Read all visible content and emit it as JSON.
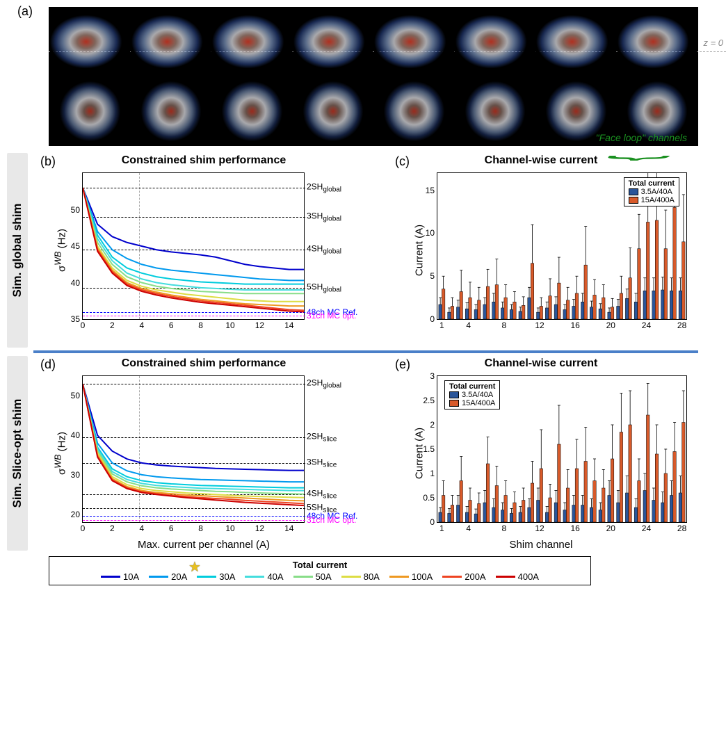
{
  "panel_a_label": "(a)",
  "z_label": "z = 0",
  "side_labels": {
    "global": "Sim. global shim",
    "slice": "Sim. Slice-opt shim"
  },
  "panels": {
    "b": {
      "label": "(b)",
      "title": "Constrained shim performance"
    },
    "c": {
      "label": "(c)",
      "title": "Channel-wise current"
    },
    "d": {
      "label": "(d)",
      "title": "Constrained shim performance"
    },
    "e": {
      "label": "(e)",
      "title": "Channel-wise current"
    }
  },
  "axis": {
    "y_sigma": "σ^{WB} (Hz)",
    "y_current": "Current (A)",
    "x_max_current": "Max. current per channel (A)",
    "x_shim": "Shim channel"
  },
  "chart_b": {
    "xlim": [
      0,
      15
    ],
    "ylim": [
      35,
      55
    ],
    "xticks": [
      0,
      2,
      4,
      6,
      8,
      10,
      12,
      14
    ],
    "yticks": [
      35,
      40,
      45,
      50
    ],
    "vline": 3.8,
    "refs": [
      {
        "y": 53,
        "label": "2SH_global",
        "color": "#000"
      },
      {
        "y": 49,
        "label": "3SH_global",
        "color": "#000"
      },
      {
        "y": 44.5,
        "label": "4SH_global",
        "color": "#000"
      },
      {
        "y": 39.3,
        "label": "5SH_global",
        "color": "#000"
      },
      {
        "y": 36,
        "label": "48ch MC Ref.",
        "color": "#0000ff"
      },
      {
        "y": 35.5,
        "label": "31ch MC opt.",
        "color": "#ff00ff"
      }
    ],
    "series": [
      {
        "color": "#0000cc",
        "y": [
          53,
          48,
          46.3,
          45.5,
          45,
          44.5,
          44.2,
          44,
          43.8,
          43.5,
          43,
          42.5,
          42.2,
          42,
          41.8,
          41.8
        ]
      },
      {
        "color": "#0099ee",
        "y": [
          53,
          47,
          44.5,
          43.3,
          42.5,
          42,
          41.7,
          41.5,
          41.3,
          41.1,
          40.9,
          40.7,
          40.5,
          40.4,
          40.3,
          40.3
        ]
      },
      {
        "color": "#00ccdd",
        "y": [
          53,
          46.5,
          43.5,
          42,
          41.3,
          40.8,
          40.5,
          40.3,
          40.1,
          40,
          39.9,
          39.8,
          39.8,
          39.8,
          39.8,
          39.8
        ]
      },
      {
        "color": "#44dddd",
        "y": [
          53,
          46,
          43,
          41.3,
          40.5,
          40,
          39.7,
          39.5,
          39.3,
          39.2,
          39.1,
          39,
          39,
          39,
          39,
          39
        ]
      },
      {
        "color": "#88dd88",
        "y": [
          53,
          45.5,
          42.5,
          40.8,
          40,
          39.5,
          39.2,
          39,
          38.8,
          38.7,
          38.6,
          38.5,
          38.5,
          38.5,
          38.5,
          38.5
        ]
      },
      {
        "color": "#dddd44",
        "y": [
          53,
          45,
          42,
          40.3,
          39.5,
          39,
          38.7,
          38.4,
          38.2,
          38,
          37.8,
          37.6,
          37.5,
          37.4,
          37.4,
          37.4
        ]
      },
      {
        "color": "#ee9922",
        "y": [
          53,
          44.7,
          41.7,
          40,
          39.2,
          38.7,
          38.3,
          38,
          37.7,
          37.5,
          37.3,
          37.1,
          37,
          36.9,
          36.8,
          36.8
        ]
      },
      {
        "color": "#ee4422",
        "y": [
          53,
          44.5,
          41.5,
          39.8,
          39,
          38.5,
          38.1,
          37.8,
          37.5,
          37.3,
          37.1,
          36.9,
          36.7,
          36.5,
          36.3,
          36.2
        ]
      },
      {
        "color": "#cc0000",
        "y": [
          53,
          44.3,
          41.3,
          39.6,
          38.8,
          38.3,
          37.9,
          37.6,
          37.3,
          37.1,
          36.9,
          36.7,
          36.5,
          36.3,
          36.1,
          36
        ]
      }
    ]
  },
  "chart_d": {
    "xlim": [
      0,
      15
    ],
    "ylim": [
      18,
      55
    ],
    "xticks": [
      0,
      2,
      4,
      6,
      8,
      10,
      12,
      14
    ],
    "yticks": [
      20,
      30,
      40,
      50
    ],
    "vline": 3.8,
    "refs": [
      {
        "y": 53,
        "label": "2SH_global",
        "color": "#000"
      },
      {
        "y": 39.5,
        "label": "2SH_slice",
        "color": "#000"
      },
      {
        "y": 33,
        "label": "3SH_slice",
        "color": "#000"
      },
      {
        "y": 25,
        "label": "4SH_slice",
        "color": "#000"
      },
      {
        "y": 21.5,
        "label": "5SH_slice",
        "color": "#000"
      },
      {
        "y": 19.5,
        "label": "48ch MC Ref.",
        "color": "#0000ff"
      },
      {
        "y": 18.5,
        "label": "31ch MC opt.",
        "color": "#ff00ff"
      }
    ],
    "series": [
      {
        "color": "#0000cc",
        "y": [
          53,
          40,
          36,
          34,
          33,
          32.5,
          32.2,
          32,
          31.8,
          31.6,
          31.5,
          31.4,
          31.3,
          31.2,
          31.1,
          31.1
        ]
      },
      {
        "color": "#0099ee",
        "y": [
          53,
          38,
          33,
          31,
          30,
          29.5,
          29.2,
          29,
          28.8,
          28.7,
          28.6,
          28.5,
          28.4,
          28.3,
          28.2,
          28.2
        ]
      },
      {
        "color": "#00ccdd",
        "y": [
          53,
          37,
          31.5,
          29.5,
          28.5,
          28,
          27.7,
          27.5,
          27.3,
          27.2,
          27.1,
          27,
          26.9,
          26.8,
          26.7,
          26.7
        ]
      },
      {
        "color": "#44dddd",
        "y": [
          53,
          36.5,
          30.8,
          28.8,
          27.8,
          27.3,
          27,
          26.8,
          26.6,
          26.5,
          26.4,
          26.3,
          26.2,
          26.1,
          26,
          26
        ]
      },
      {
        "color": "#88dd88",
        "y": [
          53,
          36,
          30.2,
          28.2,
          27.2,
          26.7,
          26.4,
          26.2,
          26,
          25.8,
          25.7,
          25.5,
          25.4,
          25.3,
          25.2,
          25.1
        ]
      },
      {
        "color": "#dddd44",
        "y": [
          53,
          35.5,
          29.5,
          27.5,
          26.5,
          26,
          25.7,
          25.4,
          25.2,
          25,
          24.8,
          24.6,
          24.5,
          24.4,
          24.3,
          24.2
        ]
      },
      {
        "color": "#ee9922",
        "y": [
          53,
          35,
          29,
          27,
          26,
          25.5,
          25.2,
          24.9,
          24.7,
          24.5,
          24.3,
          24.1,
          23.9,
          23.7,
          23.5,
          23.4
        ]
      },
      {
        "color": "#ee4422",
        "y": [
          53,
          34.7,
          28.7,
          26.7,
          25.7,
          25.2,
          24.8,
          24.5,
          24.2,
          24,
          23.8,
          23.5,
          23.3,
          23.1,
          22.9,
          22.7
        ]
      },
      {
        "color": "#cc0000",
        "y": [
          53,
          34.5,
          28.5,
          26.5,
          25.5,
          25,
          24.6,
          24.2,
          23.9,
          23.6,
          23.3,
          23,
          22.8,
          22.6,
          22.4,
          22.2
        ]
      }
    ]
  },
  "chart_c": {
    "xlim": [
      1,
      28
    ],
    "ylim": [
      0,
      17
    ],
    "xticks": [
      1,
      4,
      8,
      12,
      16,
      20,
      24,
      28
    ],
    "yticks": [
      0,
      5,
      10,
      15
    ],
    "face_loop_label": "\"Face loop\"\nchannels",
    "legend": {
      "title": "Total current",
      "a": "3.5A/40A",
      "b": "15A/400A"
    },
    "colors": {
      "a": "#2a5599",
      "b": "#d85a2a"
    },
    "blue": [
      1.7,
      0.8,
      1.4,
      1.2,
      1.1,
      1.7,
      2.0,
      1.3,
      1.1,
      0.9,
      2.5,
      0.8,
      1.3,
      1.7,
      1.1,
      1.5,
      2.0,
      1.4,
      1.2,
      0.8,
      1.5,
      2.4,
      2.0,
      3.3,
      3.3,
      3.4,
      3.3,
      3.3
    ],
    "orange": [
      3.5,
      1.5,
      3.2,
      2.5,
      2.2,
      3.8,
      4.0,
      2.5,
      2.0,
      1.6,
      6.5,
      1.5,
      2.7,
      4.2,
      2.2,
      3.0,
      6.3,
      2.8,
      2.5,
      1.4,
      3.0,
      4.8,
      8.2,
      11.3,
      11.5,
      8.2,
      13.0,
      9.0
    ],
    "blue_err": [
      0.8,
      0.5,
      0.8,
      0.7,
      0.6,
      0.8,
      1.0,
      0.7,
      0.6,
      0.5,
      1.2,
      0.5,
      0.7,
      0.9,
      0.6,
      0.8,
      1.0,
      0.7,
      0.6,
      0.5,
      0.8,
      1.1,
      1.0,
      1.5,
      1.5,
      1.5,
      1.5,
      1.5
    ],
    "orange_err": [
      1.5,
      1.0,
      2.5,
      1.8,
      1.5,
      2.0,
      3.0,
      1.5,
      1.2,
      1.0,
      4.5,
      1.0,
      2.0,
      3.0,
      1.5,
      2.0,
      4.5,
      1.8,
      1.5,
      1.0,
      2.0,
      3.5,
      4.0,
      6.2,
      6.0,
      4.5,
      3.0,
      5.5
    ]
  },
  "chart_e": {
    "xlim": [
      1,
      28
    ],
    "ylim": [
      0,
      3
    ],
    "xticks": [
      1,
      4,
      8,
      12,
      16,
      20,
      24,
      28
    ],
    "yticks": [
      0,
      0.5,
      1,
      1.5,
      2,
      2.5,
      3
    ],
    "legend": {
      "title": "Total current",
      "a": "3.5A/40A",
      "b": "15A/400A"
    },
    "colors": {
      "a": "#2a5599",
      "b": "#d85a2a"
    },
    "blue": [
      0.2,
      0.18,
      0.35,
      0.2,
      0.17,
      0.4,
      0.3,
      0.25,
      0.18,
      0.2,
      0.3,
      0.45,
      0.2,
      0.4,
      0.25,
      0.35,
      0.35,
      0.3,
      0.25,
      0.55,
      0.4,
      0.6,
      0.3,
      0.65,
      0.45,
      0.4,
      0.55,
      0.6
    ],
    "orange": [
      0.55,
      0.35,
      0.85,
      0.45,
      0.38,
      1.2,
      0.75,
      0.55,
      0.4,
      0.45,
      0.8,
      1.1,
      0.5,
      1.6,
      0.7,
      1.1,
      1.25,
      0.85,
      0.7,
      1.3,
      1.85,
      2.0,
      0.85,
      2.2,
      1.4,
      1.0,
      1.45,
      2.05
    ],
    "blue_err": [
      0.1,
      0.1,
      0.2,
      0.12,
      0.1,
      0.25,
      0.18,
      0.15,
      0.1,
      0.12,
      0.18,
      0.25,
      0.12,
      0.25,
      0.15,
      0.2,
      0.2,
      0.18,
      0.15,
      0.3,
      0.25,
      0.35,
      0.18,
      0.35,
      0.25,
      0.22,
      0.3,
      0.35
    ],
    "orange_err": [
      0.3,
      0.2,
      0.5,
      0.25,
      0.22,
      0.55,
      0.4,
      0.3,
      0.22,
      0.25,
      0.45,
      0.8,
      0.28,
      0.8,
      0.38,
      0.6,
      0.7,
      0.45,
      0.38,
      0.7,
      0.8,
      0.7,
      0.45,
      0.65,
      0.6,
      0.5,
      0.6,
      0.65
    ]
  },
  "legend": {
    "title": "Total current",
    "items": [
      {
        "color": "#0000cc",
        "label": "10A"
      },
      {
        "color": "#0099ee",
        "label": "20A"
      },
      {
        "color": "#00ccdd",
        "label": "30A"
      },
      {
        "color": "#44dddd",
        "label": "40A"
      },
      {
        "color": "#88dd88",
        "label": "50A"
      },
      {
        "color": "#dddd44",
        "label": "80A"
      },
      {
        "color": "#ee9922",
        "label": "100A"
      },
      {
        "color": "#ee4422",
        "label": "200A"
      },
      {
        "color": "#cc0000",
        "label": "400A"
      }
    ]
  }
}
